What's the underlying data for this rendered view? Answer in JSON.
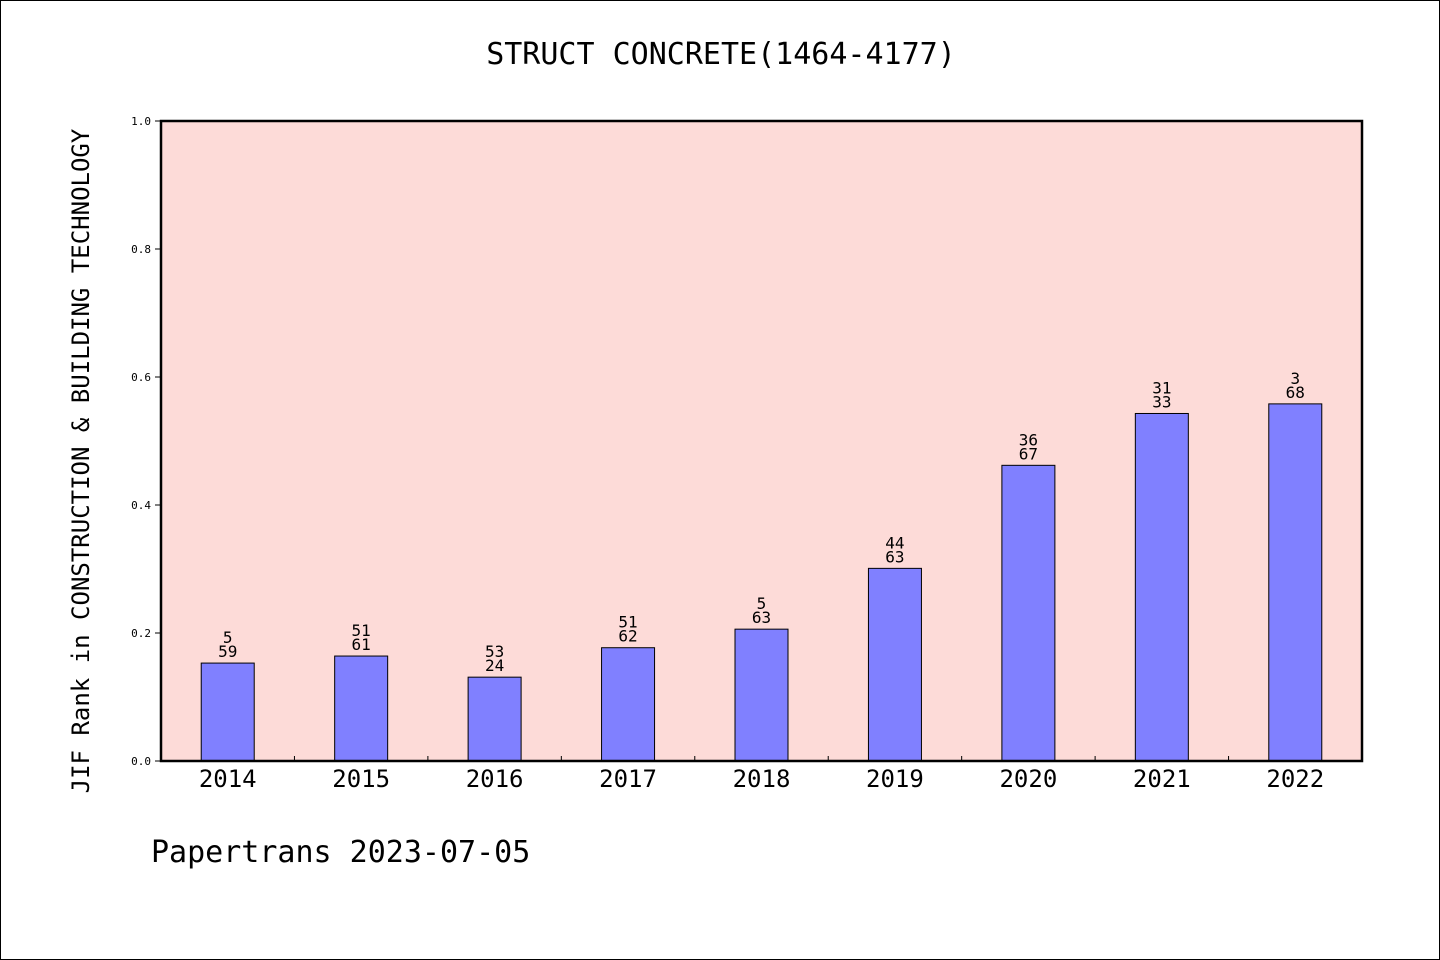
{
  "chart_data": {
    "type": "bar",
    "title": "STRUCT CONCRETE(1464-4177)",
    "ylabel": "JIF Rank in CONSTRUCTION & BUILDING TECHNOLOGY",
    "xlabel": "",
    "categories": [
      "2014",
      "2015",
      "2016",
      "2017",
      "2018",
      "2019",
      "2020",
      "2021",
      "2022"
    ],
    "values": [
      0.153,
      0.164,
      0.131,
      0.177,
      0.206,
      0.301,
      0.462,
      0.543,
      0.558
    ],
    "annotations": [
      [
        "5",
        "59"
      ],
      [
        "51",
        "61"
      ],
      [
        "53",
        "24"
      ],
      [
        "51",
        "62"
      ],
      [
        "5",
        "63"
      ],
      [
        "44",
        "63"
      ],
      [
        "36",
        "67"
      ],
      [
        "31",
        "33"
      ],
      [
        "3",
        "68"
      ]
    ],
    "ylim": [
      0,
      1.0
    ],
    "yticks": [
      "0.0",
      "0.2",
      "0.4",
      "0.6",
      "0.8",
      "1.0"
    ],
    "grid": false,
    "colors": {
      "bar": "#8080ff",
      "plot_background": "#fddbd8",
      "axis": "#000000"
    }
  },
  "footer": "Papertrans 2023-07-05"
}
